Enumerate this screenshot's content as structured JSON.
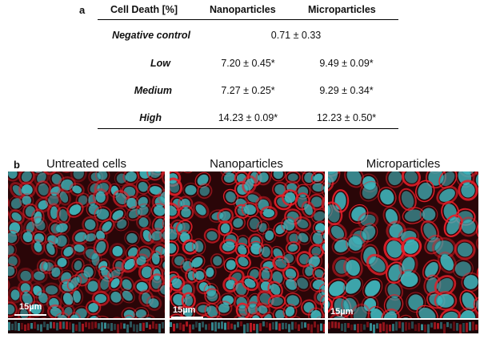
{
  "panel_a": {
    "label": "a",
    "headers": [
      "Cell Death [%]",
      "Nanoparticles",
      "Microparticles"
    ],
    "rows": [
      {
        "label": "Negative control",
        "combined": "0.71 ± 0.33"
      },
      {
        "label": "Low",
        "nano": "7.20 ± 0.45*",
        "micro": "9.49 ± 0.09*"
      },
      {
        "label": "Medium",
        "nano": "7.27 ± 0.25*",
        "micro": "9.29 ± 0.34*"
      },
      {
        "label": "High",
        "nano": "14.23 ± 0.09*",
        "micro": "12.23 ± 0.50*"
      }
    ]
  },
  "panel_b": {
    "label": "b",
    "images": [
      {
        "title": "Untreated cells",
        "scale": "15µm"
      },
      {
        "title": "Nanoparticles",
        "scale": "15µm"
      },
      {
        "title": "Microparticles",
        "scale": "15µm"
      }
    ],
    "colors": {
      "nuclei": "#3fb6bd",
      "membrane": "#e3202a",
      "background": "#2a0608"
    }
  }
}
